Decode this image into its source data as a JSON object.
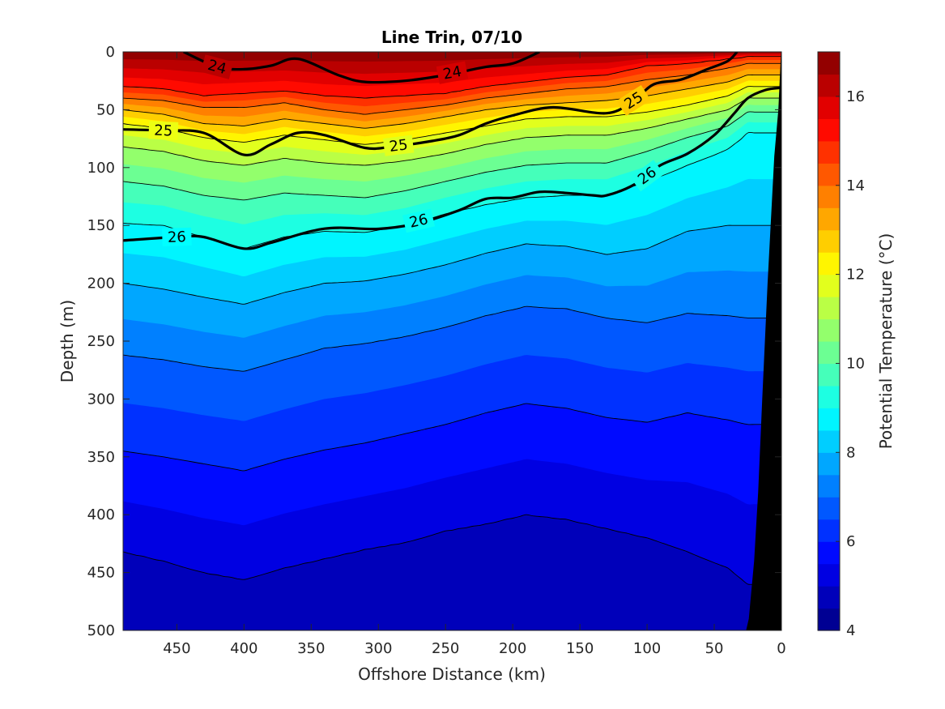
{
  "chart_data": {
    "type": "heatmap",
    "subtype": "filled contour section",
    "title": "Line Trin, 07/10",
    "xlabel": "Offshore Distance (km)",
    "ylabel": "Depth (m)",
    "colorbar_label": "Potential Temperature (°C)",
    "xlim": [
      490,
      0
    ],
    "ylim": [
      500,
      0
    ],
    "x_reversed": true,
    "y_reversed": true,
    "xticks": [
      "450",
      "400",
      "350",
      "300",
      "250",
      "200",
      "150",
      "100",
      "50",
      "0"
    ],
    "yticks": [
      "0",
      "50",
      "100",
      "150",
      "200",
      "250",
      "300",
      "350",
      "400",
      "450",
      "500"
    ],
    "colorbar_ticks": [
      "4",
      "6",
      "8",
      "10",
      "12",
      "14",
      "16"
    ],
    "clim": [
      4,
      17
    ],
    "colormap": "jet",
    "contour_step_degC": 0.5,
    "stations_x_km": [
      490,
      460,
      430,
      400,
      370,
      340,
      310,
      280,
      250,
      220,
      190,
      160,
      130,
      100,
      70,
      40,
      25
    ],
    "isotherm_depths_m": [
      {
        "temperature": 15,
        "depths": [
          30,
          32,
          38,
          36,
          34,
          38,
          40,
          38,
          36,
          30,
          26,
          22,
          20,
          12,
          10,
          6,
          4
        ]
      },
      {
        "temperature": 14,
        "depths": [
          40,
          42,
          48,
          48,
          44,
          50,
          54,
          50,
          46,
          40,
          36,
          32,
          30,
          24,
          20,
          14,
          10
        ]
      },
      {
        "temperature": 13,
        "depths": [
          50,
          54,
          62,
          64,
          58,
          62,
          66,
          62,
          56,
          50,
          46,
          44,
          42,
          38,
          32,
          26,
          20
        ]
      },
      {
        "temperature": 12,
        "depths": [
          62,
          66,
          74,
          78,
          72,
          76,
          80,
          76,
          70,
          64,
          58,
          56,
          56,
          52,
          46,
          38,
          30
        ]
      },
      {
        "temperature": 11,
        "depths": [
          82,
          86,
          94,
          98,
          92,
          96,
          98,
          94,
          88,
          80,
          74,
          72,
          72,
          66,
          58,
          50,
          40
        ]
      },
      {
        "temperature": 10,
        "depths": [
          112,
          116,
          124,
          128,
          122,
          124,
          126,
          120,
          112,
          104,
          98,
          96,
          96,
          86,
          74,
          64,
          52
        ]
      },
      {
        "temperature": 9,
        "depths": [
          148,
          150,
          160,
          170,
          160,
          155,
          156,
          150,
          140,
          132,
          126,
          124,
          124,
          112,
          98,
          84,
          70
        ]
      },
      {
        "temperature": 8,
        "depths": [
          200,
          205,
          212,
          218,
          208,
          200,
          198,
          192,
          184,
          174,
          166,
          168,
          175,
          170,
          155,
          150,
          150
        ]
      },
      {
        "temperature": 7,
        "depths": [
          262,
          266,
          272,
          276,
          266,
          256,
          252,
          246,
          238,
          228,
          220,
          222,
          230,
          234,
          226,
          228,
          230
        ]
      },
      {
        "temperature": 6,
        "depths": [
          345,
          350,
          356,
          362,
          352,
          344,
          338,
          330,
          322,
          312,
          304,
          308,
          316,
          320,
          312,
          318,
          322
        ]
      },
      {
        "temperature": 5,
        "depths": [
          432,
          440,
          450,
          456,
          446,
          438,
          430,
          424,
          414,
          408,
          400,
          404,
          412,
          420,
          432,
          446,
          460
        ]
      }
    ],
    "density_contours": [
      {
        "label": "24",
        "x_km": [
          445,
          420,
          400,
          380,
          360,
          330,
          310,
          280,
          250,
          220,
          200,
          180
        ],
        "depths": [
          0,
          13,
          15,
          12,
          6,
          20,
          26,
          25,
          20,
          13,
          10,
          0
        ]
      },
      {
        "label": "25",
        "x_km": [
          490,
          460,
          430,
          400,
          380,
          360,
          340,
          310,
          290,
          260,
          240,
          220,
          200,
          170,
          130,
          110,
          95,
          75,
          55,
          40,
          33
        ],
        "depths": [
          67,
          68,
          70,
          89,
          80,
          70,
          72,
          83,
          82,
          77,
          72,
          62,
          55,
          48,
          53,
          42,
          28,
          24,
          15,
          8,
          0
        ]
      },
      {
        "label": "26",
        "x_km": [
          490,
          450,
          430,
          400,
          380,
          350,
          330,
          300,
          270,
          240,
          220,
          200,
          180,
          160,
          140,
          130,
          110,
          90,
          70,
          50,
          35,
          25,
          12,
          0
        ],
        "depths": [
          163,
          160,
          160,
          170,
          165,
          155,
          152,
          153,
          148,
          137,
          127,
          126,
          121,
          122,
          124,
          124,
          115,
          98,
          88,
          72,
          53,
          40,
          33,
          31
        ]
      }
    ],
    "bathymetry_x_km": [
      0,
      2,
      5,
      10,
      14,
      17,
      20,
      24,
      26
    ],
    "bathymetry_depth_m": [
      0,
      50,
      90,
      200,
      300,
      380,
      440,
      490,
      500
    ]
  }
}
